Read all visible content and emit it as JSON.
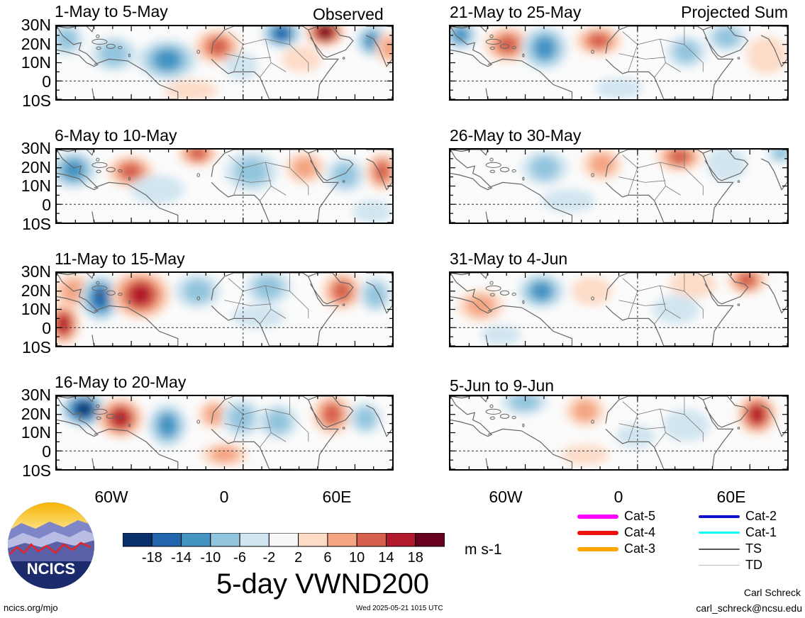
{
  "columns": {
    "left_label": "Observed",
    "right_label": "Projected Sum"
  },
  "panels": [
    {
      "id": "p1",
      "column": "left",
      "title": "1-May to 5-May"
    },
    {
      "id": "p2",
      "column": "left",
      "title": "6-May to 10-May"
    },
    {
      "id": "p3",
      "column": "left",
      "title": "11-May to 15-May"
    },
    {
      "id": "p4",
      "column": "left",
      "title": "16-May to 20-May"
    },
    {
      "id": "p5",
      "column": "right",
      "title": "21-May to 25-May"
    },
    {
      "id": "p6",
      "column": "right",
      "title": "26-May to 30-May"
    },
    {
      "id": "p7",
      "column": "right",
      "title": "31-May to 4-Jun"
    },
    {
      "id": "p8",
      "column": "right",
      "title": "5-Jun to 9-Jun"
    }
  ],
  "lat_labels": [
    "30N",
    "20N",
    "10N",
    "0",
    "10S"
  ],
  "lon_labels": [
    "60W",
    "0",
    "60E"
  ],
  "colorbar": {
    "labels": [
      "-18",
      "-14",
      "-10",
      "-6",
      "-2",
      "2",
      "6",
      "10",
      "14",
      "18"
    ],
    "colors": [
      "#08306b",
      "#2166ac",
      "#4393c3",
      "#92c5de",
      "#d1e5f0",
      "#f7f7f7",
      "#fddbc7",
      "#f4a582",
      "#d6604d",
      "#b2182b",
      "#67001f"
    ],
    "units": "m s-1"
  },
  "title": "5-day VWND200",
  "legend": [
    {
      "label": "Cat-5",
      "color": "#ff00ff",
      "width": 6
    },
    {
      "label": "Cat-4",
      "color": "#ee1111",
      "width": 6
    },
    {
      "label": "Cat-3",
      "color": "#ffa500",
      "width": 6
    },
    {
      "label": "Cat-2",
      "color": "#1111cc",
      "width": 4
    },
    {
      "label": "Cat-1",
      "color": "#00ffff",
      "width": 3
    },
    {
      "label": "TS",
      "color": "#555555",
      "width": 2
    },
    {
      "label": "TD",
      "color": "#bbbbbb",
      "width": 1
    }
  ],
  "footer": {
    "site": "ncics.org/mjo",
    "timestamp": "Wed 2025-05-21 1015 UTC",
    "author": "Carl Schreck",
    "email": "carl_schreck@ncsu.edu"
  },
  "logo_text": "NCICS",
  "anomalies": {
    "p1": [
      [
        0.17,
        0.38,
        0.07,
        0.2,
        -8
      ],
      [
        0.33,
        0.46,
        0.09,
        0.24,
        -12
      ],
      [
        0.48,
        0.28,
        0.07,
        0.2,
        10
      ],
      [
        0.67,
        0.1,
        0.06,
        0.16,
        -14
      ],
      [
        0.8,
        0.08,
        0.06,
        0.16,
        18
      ],
      [
        0.94,
        0.2,
        0.05,
        0.18,
        -12
      ],
      [
        0.99,
        0.3,
        0.04,
        0.18,
        8
      ],
      [
        0.03,
        0.18,
        0.05,
        0.18,
        -6
      ],
      [
        0.55,
        0.55,
        0.05,
        0.15,
        -4
      ],
      [
        0.73,
        0.45,
        0.06,
        0.14,
        4
      ],
      [
        0.4,
        0.88,
        0.08,
        0.1,
        4
      ]
    ],
    "p2": [
      [
        0.05,
        0.28,
        0.07,
        0.22,
        -10
      ],
      [
        0.22,
        0.3,
        0.07,
        0.18,
        10
      ],
      [
        0.42,
        0.05,
        0.06,
        0.14,
        12
      ],
      [
        0.58,
        0.3,
        0.08,
        0.24,
        -8
      ],
      [
        0.74,
        0.25,
        0.06,
        0.18,
        8
      ],
      [
        0.86,
        0.35,
        0.06,
        0.2,
        -8
      ],
      [
        0.97,
        0.3,
        0.05,
        0.22,
        12
      ],
      [
        0.3,
        0.55,
        0.08,
        0.16,
        -4
      ],
      [
        0.94,
        0.85,
        0.06,
        0.12,
        -4
      ]
    ],
    "p3": [
      [
        0.02,
        0.7,
        0.05,
        0.25,
        16
      ],
      [
        0.05,
        0.25,
        0.06,
        0.2,
        6
      ],
      [
        0.13,
        0.35,
        0.06,
        0.28,
        -14
      ],
      [
        0.25,
        0.3,
        0.09,
        0.3,
        16
      ],
      [
        0.42,
        0.25,
        0.07,
        0.2,
        -6
      ],
      [
        0.63,
        0.2,
        0.07,
        0.2,
        -6
      ],
      [
        0.85,
        0.25,
        0.06,
        0.22,
        10
      ],
      [
        0.95,
        0.3,
        0.05,
        0.2,
        -6
      ],
      [
        0.6,
        0.6,
        0.08,
        0.12,
        -4
      ]
    ],
    "p4": [
      [
        0.08,
        0.18,
        0.07,
        0.2,
        -18
      ],
      [
        0.19,
        0.3,
        0.07,
        0.24,
        16
      ],
      [
        0.33,
        0.4,
        0.06,
        0.26,
        -12
      ],
      [
        0.47,
        0.25,
        0.05,
        0.16,
        8
      ],
      [
        0.55,
        0.3,
        0.06,
        0.22,
        -8
      ],
      [
        0.66,
        0.35,
        0.06,
        0.2,
        -6
      ],
      [
        0.82,
        0.25,
        0.06,
        0.24,
        12
      ],
      [
        0.92,
        0.3,
        0.05,
        0.18,
        -6
      ],
      [
        0.5,
        0.8,
        0.07,
        0.12,
        6
      ]
    ],
    "p5": [
      [
        0.03,
        0.12,
        0.05,
        0.16,
        -12
      ],
      [
        0.17,
        0.25,
        0.07,
        0.2,
        10
      ],
      [
        0.28,
        0.3,
        0.07,
        0.26,
        -12
      ],
      [
        0.44,
        0.2,
        0.07,
        0.16,
        10
      ],
      [
        0.7,
        0.35,
        0.06,
        0.18,
        -6
      ],
      [
        0.82,
        0.15,
        0.06,
        0.16,
        -6
      ],
      [
        0.94,
        0.4,
        0.06,
        0.22,
        4
      ],
      [
        0.5,
        0.85,
        0.07,
        0.1,
        -4
      ]
    ],
    "p6": [
      [
        0.28,
        0.25,
        0.07,
        0.2,
        -6
      ],
      [
        0.45,
        0.2,
        0.06,
        0.18,
        6
      ],
      [
        0.68,
        0.1,
        0.07,
        0.16,
        10
      ],
      [
        0.82,
        0.2,
        0.06,
        0.2,
        -4
      ],
      [
        0.98,
        0.05,
        0.04,
        0.1,
        -6
      ],
      [
        0.35,
        0.7,
        0.08,
        0.12,
        -4
      ]
    ],
    "p7": [
      [
        0.27,
        0.25,
        0.07,
        0.2,
        -10
      ],
      [
        0.09,
        0.45,
        0.07,
        0.18,
        6
      ],
      [
        0.42,
        0.25,
        0.06,
        0.16,
        4
      ],
      [
        0.72,
        0.15,
        0.07,
        0.16,
        4
      ],
      [
        0.88,
        0.1,
        0.06,
        0.16,
        10
      ],
      [
        0.67,
        0.5,
        0.07,
        0.16,
        -4
      ],
      [
        0.15,
        0.85,
        0.06,
        0.1,
        -4
      ]
    ],
    "p8": [
      [
        0.22,
        0.08,
        0.07,
        0.14,
        -8
      ],
      [
        0.4,
        0.2,
        0.06,
        0.18,
        6
      ],
      [
        0.91,
        0.25,
        0.06,
        0.24,
        14
      ],
      [
        0.7,
        0.4,
        0.07,
        0.18,
        -4
      ],
      [
        0.55,
        0.55,
        0.06,
        0.12,
        -4
      ],
      [
        0.4,
        0.8,
        0.07,
        0.1,
        4
      ]
    ]
  }
}
